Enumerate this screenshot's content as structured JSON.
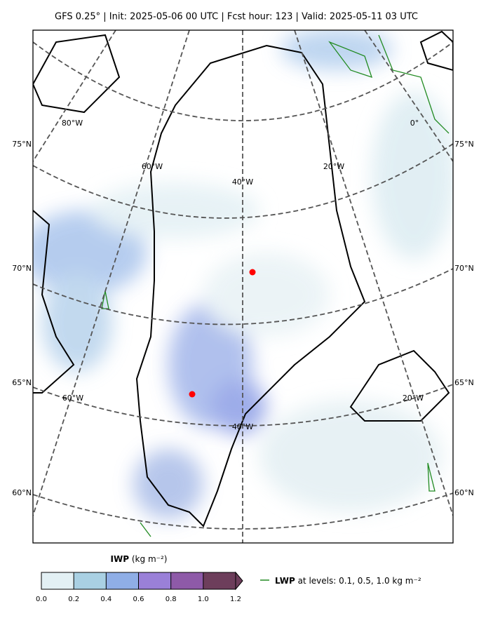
{
  "header": {
    "title": "GFS 0.25° | Init: 2025-05-06 00 UTC | Fcst hour: 123 | Valid: 2025-05-11 03 UTC"
  },
  "map": {
    "lat_labels_left": [
      "75°N",
      "70°N",
      "65°N",
      "60°N"
    ],
    "lat_labels_right": [
      "75°N",
      "70°N",
      "65°N",
      "60°N"
    ],
    "lon_labels": [
      "80°W",
      "0°",
      "60°W",
      "40°W",
      "20°W",
      "60°W",
      "20°W",
      "40°W"
    ]
  },
  "colorbar": {
    "name": "IWP",
    "units": "(kg m⁻²)",
    "lim": [
      0,
      1.2
    ],
    "ticks": [
      {
        "value": 0,
        "label": "0.0"
      },
      0.2,
      0.4,
      0.6,
      0.8,
      {
        "value": 1,
        "label": "1.0"
      },
      1.2
    ],
    "colors": [
      "#e3f0f4",
      "#a9d0e3",
      "#8faee6",
      "#9a80d8",
      "#8e5aa8",
      "#6d3e5b"
    ]
  },
  "legend": {
    "name": "LWP",
    "text": "at levels: 0.1, 0.5, 1.0  kg m⁻²",
    "color": "#228b22"
  }
}
